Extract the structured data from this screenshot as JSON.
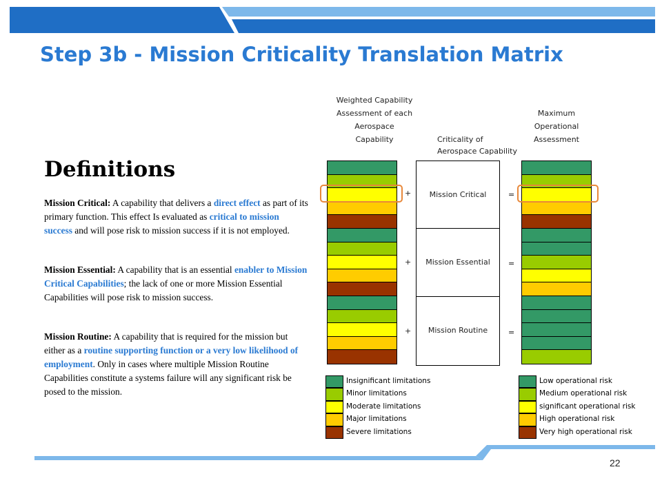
{
  "title": "Step 3b - Mission Criticality Translation Matrix",
  "definitions": {
    "heading": "Definitions",
    "critical": {
      "term": "Mission Critical:",
      "t1": " A capability that delivers a ",
      "h1": "direct effect",
      "t2": " as part of its primary function. This effect Is evaluated as ",
      "h2": "critical to mission success",
      "t3": " and will pose risk to mission success if it is not employed."
    },
    "essential": {
      "term": "Mission Essential:",
      "t1": " A capability that is an essential ",
      "h1": "enabler to Mission Critical Capabilities",
      "t2": "; the lack of one or more Mission Essential Capabilities will pose risk to mission success."
    },
    "routine": {
      "term": "Mission Routine:",
      "t1": " A capability that is required for the mission but either as a ",
      "h1": "routine supporting function or a very low likelihood of employment",
      "t2": ".  Only in cases where multiple Mission Routine Capabilities constitute a systems failure will any significant risk be posed to the mission."
    }
  },
  "headers": {
    "left": [
      "Weighted Capability",
      "Assessment of each",
      "Aerospace",
      "Capability"
    ],
    "middle": [
      "Criticality of",
      "Aerospace Capability"
    ],
    "right": [
      "Maximum",
      "Operational",
      "Assessment"
    ]
  },
  "criticality": [
    "Mission Critical",
    "Mission Essential",
    "Mission Routine"
  ],
  "operators": {
    "plus": "+",
    "equals": "="
  },
  "colors": {
    "green": "#339966",
    "lightgreen": "#99cc00",
    "yellow": "#ffff00",
    "gold": "#ffcc00",
    "brown": "#993300",
    "accent": "#2a7ad2",
    "highlight": "#e8883a"
  },
  "left_column_cells": [
    "green",
    "lightgreen",
    "yellow",
    "gold",
    "brown",
    "green",
    "lightgreen",
    "yellow",
    "gold",
    "brown",
    "green",
    "lightgreen",
    "yellow",
    "gold",
    "brown"
  ],
  "right_column_cells": [
    "green",
    "lightgreen",
    "yellow",
    "gold",
    "brown",
    "green",
    "green",
    "lightgreen",
    "yellow",
    "gold",
    "green",
    "green",
    "green",
    "green",
    "lightgreen"
  ],
  "legend_left": [
    {
      "color": "green",
      "label": "Insignificant limitations"
    },
    {
      "color": "lightgreen",
      "label": "Minor limitations"
    },
    {
      "color": "yellow",
      "label": "Moderate limitations"
    },
    {
      "color": "gold",
      "label": "Major limitations"
    },
    {
      "color": "brown",
      "label": "Severe limitations"
    }
  ],
  "legend_right": [
    {
      "color": "green",
      "label": "Low operational risk"
    },
    {
      "color": "lightgreen",
      "label": "Medium operational risk"
    },
    {
      "color": "yellow",
      "label": "significant operational risk"
    },
    {
      "color": "gold",
      "label": "High operational risk"
    },
    {
      "color": "brown",
      "label": "Very high operational risk"
    }
  ],
  "page_number": "22"
}
